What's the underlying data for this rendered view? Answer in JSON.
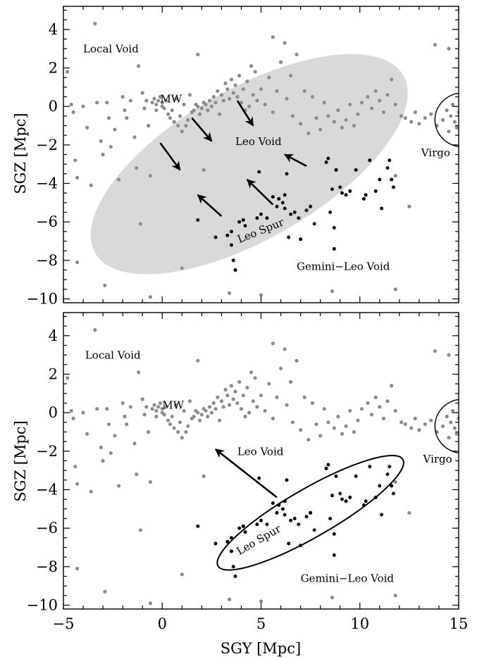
{
  "chart_data": [
    {
      "type": "scatter",
      "panel": "top",
      "xlabel": "",
      "ylabel": "SGZ [Mpc]",
      "xlim": [
        -5,
        15
      ],
      "ylim": [
        -10.2,
        5.2
      ],
      "xticks": [
        "−5",
        "0",
        "5",
        "10",
        "15"
      ],
      "xtick_values": [
        -5,
        0,
        5,
        10,
        15
      ],
      "show_xtick_labels": false,
      "yticks": [
        "4",
        "2",
        "0",
        "−2",
        "−4",
        "−6",
        "−8",
        "−10"
      ],
      "ytick_values": [
        4,
        2,
        0,
        -2,
        -4,
        -6,
        -8,
        -10
      ],
      "series_colors": {
        "background_galaxies": "#8c8c8c",
        "leo_spur_galaxies": "#000000"
      },
      "void_region": {
        "center": [
          4.4,
          -3.0
        ],
        "half_axes": [
          9.0,
          3.9
        ],
        "angle_deg": 30,
        "fill": "#d9d9d9"
      },
      "virgo_circle": {
        "center": [
          15.2,
          -0.7
        ],
        "radius": 1.4
      },
      "arrows": [
        {
          "from": [
            1.5,
            -0.6
          ],
          "to": [
            2.5,
            -1.8
          ]
        },
        {
          "from": [
            -0.1,
            -1.9
          ],
          "to": [
            0.9,
            -3.3
          ]
        },
        {
          "from": [
            3.8,
            0.3
          ],
          "to": [
            4.6,
            -1.0
          ]
        },
        {
          "from": [
            3.0,
            -5.7
          ],
          "to": [
            1.8,
            -4.6
          ]
        },
        {
          "from": [
            5.6,
            -5.1
          ],
          "to": [
            4.3,
            -3.8
          ]
        },
        {
          "from": [
            7.3,
            -3.1
          ],
          "to": [
            6.2,
            -2.5
          ]
        }
      ],
      "annotations": [
        {
          "text": "Local Void",
          "x": -4.0,
          "y": 2.8
        },
        {
          "text": "MW",
          "x": -0.1,
          "y": 0.2
        },
        {
          "text": "Leo Void",
          "x": 3.7,
          "y": -2.0
        },
        {
          "text": "Virgo",
          "x": 13.1,
          "y": -2.6
        },
        {
          "text": "Leo Spur",
          "x": 3.9,
          "y": -7.1,
          "rotate": -22
        },
        {
          "text": "Gemini−Leo Void",
          "x": 6.8,
          "y": -8.5
        }
      ]
    },
    {
      "type": "scatter",
      "panel": "bottom",
      "xlabel": "SGY [Mpc]",
      "ylabel": "SGZ [Mpc]",
      "xlim": [
        -5,
        15
      ],
      "ylim": [
        -10.2,
        5.2
      ],
      "xticks": [
        "−5",
        "0",
        "5",
        "10",
        "15"
      ],
      "xtick_values": [
        -5,
        0,
        5,
        10,
        15
      ],
      "show_xtick_labels": true,
      "yticks": [
        "4",
        "2",
        "0",
        "−2",
        "−4",
        "−6",
        "−8",
        "−10"
      ],
      "ytick_values": [
        4,
        2,
        0,
        -2,
        -4,
        -6,
        -8,
        -10
      ],
      "series_colors": {
        "background_galaxies": "#8c8c8c",
        "leo_spur_galaxies": "#000000"
      },
      "spur_ellipse": {
        "center": [
          7.5,
          -5.2
        ],
        "half_axes": [
          5.4,
          1.25
        ],
        "angle_deg": 30
      },
      "virgo_circle": {
        "center": [
          15.2,
          -0.7
        ],
        "radius": 1.4
      },
      "arrows": [
        {
          "from": [
            5.8,
            -4.4
          ],
          "to": [
            2.7,
            -1.9
          ]
        }
      ],
      "annotations": [
        {
          "text": "Local Void",
          "x": -3.9,
          "y": 2.8
        },
        {
          "text": "MW",
          "x": 0.0,
          "y": 0.2
        },
        {
          "text": "Leo Void",
          "x": 3.8,
          "y": -2.2
        },
        {
          "text": "Virgo",
          "x": 13.2,
          "y": -2.6
        },
        {
          "text": "Leo Spur",
          "x": 3.9,
          "y": -7.4,
          "rotate": -30
        },
        {
          "text": "Gemini−Leo Void",
          "x": 7.0,
          "y": -8.8
        }
      ]
    }
  ],
  "galaxies": {
    "leo_spur": [
      [
        1.8,
        -5.9
      ],
      [
        2.7,
        -6.8
      ],
      [
        3.3,
        -6.7
      ],
      [
        3.5,
        -6.5
      ],
      [
        3.5,
        -7.2
      ],
      [
        3.6,
        -8.0
      ],
      [
        3.7,
        -8.5
      ],
      [
        3.9,
        -6.0
      ],
      [
        4.1,
        -5.9
      ],
      [
        4.2,
        -6.2
      ],
      [
        4.8,
        -5.8
      ],
      [
        4.9,
        -3.4
      ],
      [
        5.0,
        -5.6
      ],
      [
        5.3,
        -5.8
      ],
      [
        5.6,
        -4.7
      ],
      [
        5.9,
        -4.8
      ],
      [
        5.8,
        -5.2
      ],
      [
        6.1,
        -5.0
      ],
      [
        6.2,
        -5.3
      ],
      [
        6.2,
        -4.6
      ],
      [
        6.3,
        -3.5
      ],
      [
        6.4,
        -6.8
      ],
      [
        6.5,
        -5.6
      ],
      [
        6.7,
        -5.5
      ],
      [
        6.9,
        -5.8
      ],
      [
        7.0,
        -6.9
      ],
      [
        7.3,
        -5.4
      ],
      [
        7.5,
        -5.2
      ],
      [
        7.7,
        -6.1
      ],
      [
        8.3,
        -2.9
      ],
      [
        8.4,
        -2.7
      ],
      [
        8.5,
        -5.5
      ],
      [
        8.6,
        -4.3
      ],
      [
        8.7,
        -6.3
      ],
      [
        8.7,
        -7.4
      ],
      [
        8.8,
        -3.3
      ],
      [
        9.0,
        -4.2
      ],
      [
        9.1,
        -4.5
      ],
      [
        9.3,
        -4.6
      ],
      [
        9.5,
        -4.4
      ],
      [
        9.8,
        -3.3
      ],
      [
        10.2,
        -4.8
      ],
      [
        10.3,
        -4.6
      ],
      [
        10.5,
        -2.8
      ],
      [
        10.8,
        -4.4
      ],
      [
        11.0,
        -3.8
      ],
      [
        11.1,
        -5.3
      ],
      [
        11.4,
        -3.2
      ],
      [
        11.5,
        -2.8
      ],
      [
        11.6,
        -3.8
      ],
      [
        11.7,
        -4.2
      ]
    ],
    "background": [
      [
        -4.8,
        1.8
      ],
      [
        -4.6,
        0.1
      ],
      [
        -4.5,
        -0.3
      ],
      [
        -4.4,
        -2.8
      ],
      [
        -4.3,
        -3.7
      ],
      [
        -4.3,
        -8.1
      ],
      [
        -4.0,
        0.0
      ],
      [
        -3.8,
        -1.1
      ],
      [
        -3.6,
        -4.1
      ],
      [
        -3.4,
        4.3
      ],
      [
        -3.3,
        0.2
      ],
      [
        -3.1,
        -1.8
      ],
      [
        -3.0,
        -2.5
      ],
      [
        -2.8,
        0.2
      ],
      [
        -2.7,
        -0.6
      ],
      [
        -2.6,
        -2.1
      ],
      [
        -2.4,
        -1.2
      ],
      [
        -2.2,
        -3.8
      ],
      [
        -2.0,
        0.5
      ],
      [
        -1.9,
        -0.2
      ],
      [
        -1.8,
        -0.6
      ],
      [
        -1.6,
        0.3
      ],
      [
        -1.4,
        -1.6
      ],
      [
        -1.3,
        -3.2
      ],
      [
        -1.1,
        -6.1
      ],
      [
        -1.0,
        0.7
      ],
      [
        -0.9,
        -0.1
      ],
      [
        -0.8,
        0.3
      ],
      [
        -0.7,
        -1.0
      ],
      [
        -0.6,
        -3.6
      ],
      [
        -0.5,
        0.2
      ],
      [
        -0.4,
        0.4
      ],
      [
        -0.3,
        0.1
      ],
      [
        -0.3,
        -0.2
      ],
      [
        -0.2,
        0.3
      ],
      [
        -0.1,
        0.5
      ],
      [
        0.0,
        0.2
      ],
      [
        0.0,
        0.0
      ],
      [
        0.1,
        -0.1
      ],
      [
        0.2,
        0.3
      ],
      [
        0.3,
        -0.4
      ],
      [
        0.4,
        -0.6
      ],
      [
        0.5,
        -0.2
      ],
      [
        0.6,
        -0.8
      ],
      [
        0.7,
        0.4
      ],
      [
        0.8,
        -1.0
      ],
      [
        0.9,
        -0.5
      ],
      [
        1.0,
        -1.3
      ],
      [
        1.1,
        0.1
      ],
      [
        1.2,
        -1.0
      ],
      [
        1.3,
        -0.7
      ],
      [
        1.4,
        0.6
      ],
      [
        1.5,
        -0.3
      ],
      [
        1.6,
        -0.2
      ],
      [
        1.7,
        0.1
      ],
      [
        1.8,
        0.0
      ],
      [
        1.9,
        -0.4
      ],
      [
        2.0,
        -0.1
      ],
      [
        2.1,
        0.2
      ],
      [
        2.2,
        0.1
      ],
      [
        2.3,
        -0.2
      ],
      [
        2.4,
        0.3
      ],
      [
        2.5,
        0.0
      ],
      [
        2.6,
        0.5
      ],
      [
        2.7,
        0.2
      ],
      [
        2.8,
        0.8
      ],
      [
        2.9,
        -0.4
      ],
      [
        3.0,
        0.6
      ],
      [
        3.1,
        0.3
      ],
      [
        3.2,
        1.2
      ],
      [
        3.3,
        0.9
      ],
      [
        3.4,
        0.4
      ],
      [
        3.5,
        1.4
      ],
      [
        3.6,
        0.7
      ],
      [
        3.7,
        1.1
      ],
      [
        3.8,
        0.5
      ],
      [
        3.9,
        1.6
      ],
      [
        4.0,
        0.2
      ],
      [
        4.1,
        0.9
      ],
      [
        4.2,
        -0.2
      ],
      [
        4.3,
        1.3
      ],
      [
        4.4,
        0.0
      ],
      [
        4.5,
        2.1
      ],
      [
        4.6,
        0.6
      ],
      [
        4.8,
        0.3
      ],
      [
        5.0,
        0.9
      ],
      [
        5.2,
        0.1
      ],
      [
        5.4,
        1.5
      ],
      [
        5.6,
        -0.3
      ],
      [
        5.8,
        0.8
      ],
      [
        6.0,
        2.3
      ],
      [
        6.2,
        3.3
      ],
      [
        6.3,
        0.4
      ],
      [
        6.5,
        1.6
      ],
      [
        6.6,
        -0.5
      ],
      [
        6.8,
        2.7
      ],
      [
        7.0,
        -0.9
      ],
      [
        7.2,
        0.8
      ],
      [
        7.4,
        -1.4
      ],
      [
        7.6,
        0.5
      ],
      [
        7.8,
        -0.6
      ],
      [
        8.0,
        -1.2
      ],
      [
        8.2,
        0.2
      ],
      [
        8.4,
        -0.5
      ],
      [
        8.7,
        -0.8
      ],
      [
        8.9,
        -0.2
      ],
      [
        9.1,
        -1.1
      ],
      [
        9.3,
        -0.7
      ],
      [
        9.5,
        0.1
      ],
      [
        9.7,
        -1.0
      ],
      [
        9.9,
        -0.4
      ],
      [
        10.1,
        0.2
      ],
      [
        10.4,
        0.5
      ],
      [
        10.6,
        -0.1
      ],
      [
        10.8,
        0.8
      ],
      [
        11.0,
        0.3
      ],
      [
        11.2,
        -0.3
      ],
      [
        11.4,
        0.6
      ],
      [
        11.6,
        1.4
      ],
      [
        11.8,
        0.1
      ],
      [
        12.1,
        -0.5
      ],
      [
        12.3,
        -0.6
      ],
      [
        12.6,
        -0.8
      ],
      [
        12.8,
        -0.3
      ],
      [
        13.0,
        -0.9
      ],
      [
        13.3,
        -0.6
      ],
      [
        13.6,
        -0.4
      ],
      [
        13.9,
        -1.0
      ],
      [
        14.2,
        -0.7
      ],
      [
        14.4,
        -0.2
      ],
      [
        14.6,
        -0.5
      ],
      [
        14.8,
        -0.8
      ],
      [
        15.0,
        -0.3
      ],
      [
        14.5,
        -1.3
      ],
      [
        14.7,
        0.1
      ],
      [
        14.9,
        -1.1
      ],
      [
        2.1,
        -3.3
      ],
      [
        3.4,
        -9.7
      ],
      [
        1.0,
        -8.4
      ],
      [
        -2.9,
        -9.3
      ],
      [
        -0.6,
        -9.9
      ],
      [
        5.6,
        3.6
      ],
      [
        5.0,
        -9.8
      ],
      [
        8.6,
        -9.6
      ],
      [
        11.8,
        -9.5
      ],
      [
        14.5,
        3.0
      ],
      [
        13.8,
        3.2
      ],
      [
        11.8,
        -3.6
      ],
      [
        12.5,
        -5.2
      ],
      [
        4.7,
        1.8
      ],
      [
        1.8,
        2.7
      ],
      [
        -1.2,
        2.1
      ]
    ]
  }
}
